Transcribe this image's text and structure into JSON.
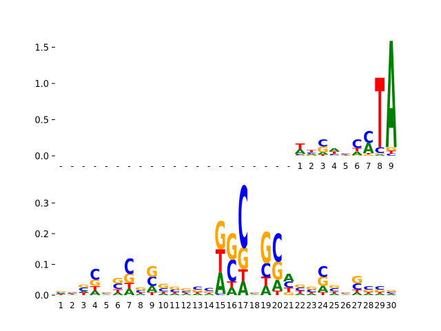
{
  "colors": {
    "A": "#008000",
    "C": "#0000ff",
    "G": "#ffa500",
    "T": "#ff0000"
  },
  "chart_data": [
    {
      "type": "sequence-logo",
      "title": "",
      "xlabel": "",
      "ylabel": "",
      "ylim": [
        0,
        1.6
      ],
      "yticks": [
        "0.0",
        "0.5",
        "1.0",
        "1.5"
      ],
      "ytick_values": [
        0,
        0.5,
        1.0,
        1.5
      ],
      "position_labels": [
        "-",
        "-",
        "-",
        "-",
        "-",
        "-",
        "-",
        "-",
        "-",
        "-",
        "-",
        "-",
        "-",
        "-",
        "-",
        "-",
        "-",
        "-",
        "-",
        "-",
        "-",
        "1",
        "2",
        "3",
        "4",
        "5",
        "6",
        "7",
        "8",
        "9"
      ],
      "columns": [
        [],
        [],
        [],
        [],
        [],
        [],
        [],
        [],
        [],
        [],
        [],
        [],
        [],
        [],
        [],
        [],
        [],
        [],
        [],
        [],
        [],
        [
          {
            "b": "G",
            "h": 0.01
          },
          {
            "b": "C",
            "h": 0.02
          },
          {
            "b": "A",
            "h": 0.06
          },
          {
            "b": "T",
            "h": 0.08
          }
        ],
        [
          {
            "b": "G",
            "h": 0.01
          },
          {
            "b": "A",
            "h": 0.02
          },
          {
            "b": "C",
            "h": 0.02
          },
          {
            "b": "T",
            "h": 0.03
          }
        ],
        [
          {
            "b": "T",
            "h": 0.02
          },
          {
            "b": "A",
            "h": 0.03
          },
          {
            "b": "G",
            "h": 0.08
          },
          {
            "b": "C",
            "h": 0.1
          }
        ],
        [
          {
            "b": "G",
            "h": 0.01
          },
          {
            "b": "C",
            "h": 0.02
          },
          {
            "b": "T",
            "h": 0.03
          },
          {
            "b": "A",
            "h": 0.04
          }
        ],
        [
          {
            "b": "A",
            "h": 0.005
          },
          {
            "b": "G",
            "h": 0.005
          },
          {
            "b": "T",
            "h": 0.01
          },
          {
            "b": "C",
            "h": 0.01
          }
        ],
        [
          {
            "b": "G",
            "h": 0.01
          },
          {
            "b": "A",
            "h": 0.05
          },
          {
            "b": "T",
            "h": 0.05
          },
          {
            "b": "C",
            "h": 0.12
          }
        ],
        [
          {
            "b": "G",
            "h": 0.02
          },
          {
            "b": "T",
            "h": 0.02
          },
          {
            "b": "A",
            "h": 0.14
          },
          {
            "b": "C",
            "h": 0.16
          }
        ],
        [
          {
            "b": "A",
            "h": 0.02
          },
          {
            "b": "G",
            "h": 0.02
          },
          {
            "b": "C",
            "h": 0.08
          },
          {
            "b": "T",
            "h": 0.96
          }
        ],
        [
          {
            "b": "C",
            "h": 0.03
          },
          {
            "b": "T",
            "h": 0.04
          },
          {
            "b": "G",
            "h": 0.05
          },
          {
            "b": "A",
            "h": 1.47
          }
        ]
      ]
    },
    {
      "type": "sequence-logo",
      "title": "",
      "xlabel": "",
      "ylabel": "",
      "ylim": [
        0,
        0.35
      ],
      "yticks": [
        "0.0",
        "0.1",
        "0.2",
        "0.3"
      ],
      "ytick_values": [
        0,
        0.1,
        0.2,
        0.3
      ],
      "position_labels": [
        "1",
        "2",
        "3",
        "4",
        "5",
        "6",
        "7",
        "8",
        "9",
        "10",
        "11",
        "12",
        "13",
        "14",
        "15",
        "16",
        "17",
        "18",
        "19",
        "20",
        "21",
        "22",
        "23",
        "24",
        "25",
        "26",
        "27",
        "28",
        "29",
        "30"
      ],
      "columns": [
        [
          {
            "b": "T",
            "h": 0.003
          },
          {
            "b": "A",
            "h": 0.003
          },
          {
            "b": "C",
            "h": 0.003
          },
          {
            "b": "G",
            "h": 0.004
          }
        ],
        [
          {
            "b": "A",
            "h": 0.002
          },
          {
            "b": "T",
            "h": 0.003
          },
          {
            "b": "C",
            "h": 0.003
          },
          {
            "b": "G",
            "h": 0.003
          }
        ],
        [
          {
            "b": "T",
            "h": 0.008
          },
          {
            "b": "A",
            "h": 0.005
          },
          {
            "b": "C",
            "h": 0.012
          },
          {
            "b": "G",
            "h": 0.01
          }
        ],
        [
          {
            "b": "A",
            "h": 0.015
          },
          {
            "b": "T",
            "h": 0.015
          },
          {
            "b": "G",
            "h": 0.02
          },
          {
            "b": "C",
            "h": 0.035
          }
        ],
        [
          {
            "b": "A",
            "h": 0.002
          },
          {
            "b": "T",
            "h": 0.002
          },
          {
            "b": "C",
            "h": 0.003
          },
          {
            "b": "G",
            "h": 0.003
          }
        ],
        [
          {
            "b": "A",
            "h": 0.008
          },
          {
            "b": "T",
            "h": 0.012
          },
          {
            "b": "C",
            "h": 0.018
          },
          {
            "b": "G",
            "h": 0.018
          }
        ],
        [
          {
            "b": "A",
            "h": 0.02
          },
          {
            "b": "T",
            "h": 0.02
          },
          {
            "b": "G",
            "h": 0.03
          },
          {
            "b": "C",
            "h": 0.05
          }
        ],
        [
          {
            "b": "A",
            "h": 0.004
          },
          {
            "b": "T",
            "h": 0.004
          },
          {
            "b": "C",
            "h": 0.008
          },
          {
            "b": "G",
            "h": 0.01
          }
        ],
        [
          {
            "b": "T",
            "h": 0.01
          },
          {
            "b": "A",
            "h": 0.02
          },
          {
            "b": "C",
            "h": 0.03
          },
          {
            "b": "G",
            "h": 0.035
          }
        ],
        [
          {
            "b": "A",
            "h": 0.006
          },
          {
            "b": "T",
            "h": 0.006
          },
          {
            "b": "C",
            "h": 0.01
          },
          {
            "b": "G",
            "h": 0.014
          }
        ],
        [
          {
            "b": "A",
            "h": 0.005
          },
          {
            "b": "T",
            "h": 0.005
          },
          {
            "b": "C",
            "h": 0.008
          },
          {
            "b": "G",
            "h": 0.01
          }
        ],
        [
          {
            "b": "A",
            "h": 0.004
          },
          {
            "b": "T",
            "h": 0.004
          },
          {
            "b": "C",
            "h": 0.006
          },
          {
            "b": "G",
            "h": 0.008
          }
        ],
        [
          {
            "b": "A",
            "h": 0.005
          },
          {
            "b": "T",
            "h": 0.005
          },
          {
            "b": "G",
            "h": 0.008
          },
          {
            "b": "C",
            "h": 0.01
          }
        ],
        [
          {
            "b": "A",
            "h": 0.004
          },
          {
            "b": "T",
            "h": 0.004
          },
          {
            "b": "G",
            "h": 0.006
          },
          {
            "b": "C",
            "h": 0.01
          }
        ],
        [
          {
            "b": "C",
            "h": 0.005
          },
          {
            "b": "A",
            "h": 0.07
          },
          {
            "b": "T",
            "h": 0.075
          },
          {
            "b": "G",
            "h": 0.09
          }
        ],
        [
          {
            "b": "A",
            "h": 0.025
          },
          {
            "b": "T",
            "h": 0.02
          },
          {
            "b": "C",
            "h": 0.07
          },
          {
            "b": "G",
            "h": 0.085
          }
        ],
        [
          {
            "b": "A",
            "h": 0.045
          },
          {
            "b": "T",
            "h": 0.04
          },
          {
            "b": "G",
            "h": 0.07
          },
          {
            "b": "C",
            "h": 0.2
          }
        ],
        [
          {
            "b": "A",
            "h": 0.002
          },
          {
            "b": "T",
            "h": 0.002
          },
          {
            "b": "C",
            "h": 0.003
          },
          {
            "b": "G",
            "h": 0.003
          }
        ],
        [
          {
            "b": "A",
            "h": 0.03
          },
          {
            "b": "T",
            "h": 0.03
          },
          {
            "b": "C",
            "h": 0.045
          },
          {
            "b": "G",
            "h": 0.1
          }
        ],
        [
          {
            "b": "T",
            "h": 0.015
          },
          {
            "b": "A",
            "h": 0.035
          },
          {
            "b": "G",
            "h": 0.06
          },
          {
            "b": "C",
            "h": 0.09
          }
        ],
        [
          {
            "b": "G",
            "h": 0.01
          },
          {
            "b": "T",
            "h": 0.015
          },
          {
            "b": "C",
            "h": 0.02
          },
          {
            "b": "A",
            "h": 0.025
          }
        ],
        [
          {
            "b": "A",
            "h": 0.005
          },
          {
            "b": "T",
            "h": 0.01
          },
          {
            "b": "C",
            "h": 0.01
          },
          {
            "b": "G",
            "h": 0.01
          }
        ],
        [
          {
            "b": "A",
            "h": 0.005
          },
          {
            "b": "T",
            "h": 0.005
          },
          {
            "b": "C",
            "h": 0.008
          },
          {
            "b": "G",
            "h": 0.01
          }
        ],
        [
          {
            "b": "T",
            "h": 0.01
          },
          {
            "b": "A",
            "h": 0.02
          },
          {
            "b": "G",
            "h": 0.03
          },
          {
            "b": "C",
            "h": 0.035
          }
        ],
        [
          {
            "b": "A",
            "h": 0.006
          },
          {
            "b": "T",
            "h": 0.006
          },
          {
            "b": "C",
            "h": 0.01
          },
          {
            "b": "G",
            "h": 0.01
          }
        ],
        [
          {
            "b": "A",
            "h": 0.002
          },
          {
            "b": "T",
            "h": 0.002
          },
          {
            "b": "C",
            "h": 0.003
          },
          {
            "b": "G",
            "h": 0.003
          }
        ],
        [
          {
            "b": "A",
            "h": 0.008
          },
          {
            "b": "T",
            "h": 0.01
          },
          {
            "b": "C",
            "h": 0.02
          },
          {
            "b": "G",
            "h": 0.025
          }
        ],
        [
          {
            "b": "A",
            "h": 0.005
          },
          {
            "b": "T",
            "h": 0.005
          },
          {
            "b": "G",
            "h": 0.008
          },
          {
            "b": "C",
            "h": 0.012
          }
        ],
        [
          {
            "b": "A",
            "h": 0.005
          },
          {
            "b": "T",
            "h": 0.005
          },
          {
            "b": "G",
            "h": 0.008
          },
          {
            "b": "C",
            "h": 0.012
          }
        ],
        [
          {
            "b": "A",
            "h": 0.003
          },
          {
            "b": "T",
            "h": 0.003
          },
          {
            "b": "C",
            "h": 0.005
          },
          {
            "b": "G",
            "h": 0.006
          }
        ]
      ]
    }
  ]
}
